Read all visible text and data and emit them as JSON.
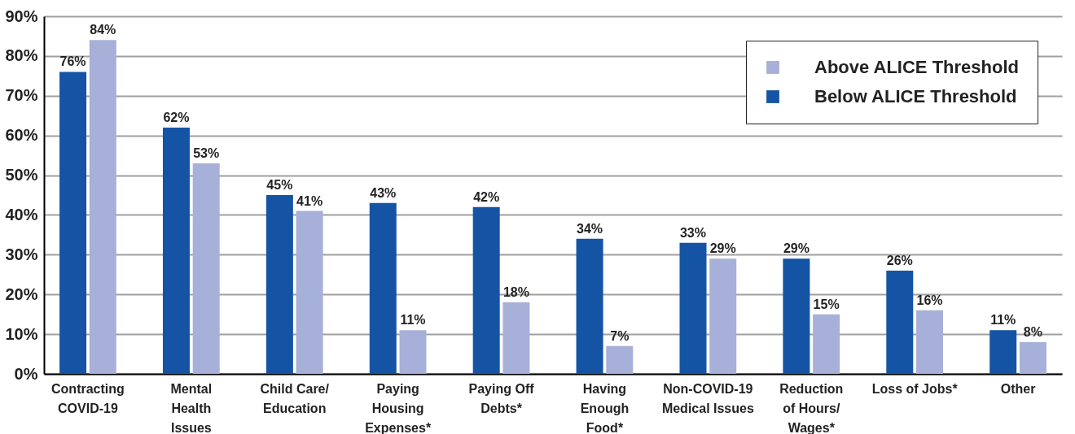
{
  "chart_data": {
    "type": "bar",
    "categories": [
      "Contracting\nCOVID-19",
      "Mental\nHealth\nIssues",
      "Child Care/\nEducation",
      "Paying\nHousing\nExpenses*",
      "Paying Off\nDebts*",
      "Having\nEnough\nFood*",
      "Non-COVID-19\nMedical Issues",
      "Reduction\nof Hours/\nWages*",
      "Loss of Jobs*",
      "Other"
    ],
    "series": [
      {
        "name": "Below ALICE Threshold",
        "color": "#1554a5",
        "values": [
          76,
          62,
          45,
          43,
          42,
          34,
          33,
          29,
          26,
          11
        ],
        "value_labels": [
          "76%",
          "62%",
          "45%",
          "43%",
          "42%",
          "34%",
          "33%",
          "29%",
          "26%",
          "11%"
        ]
      },
      {
        "name": "Above ALICE Threshold",
        "color": "#a7b0d8",
        "values": [
          84,
          53,
          41,
          11,
          18,
          7,
          29,
          15,
          16,
          8
        ],
        "value_labels": [
          "84%",
          "53%",
          "41%",
          "11%",
          "18%",
          "7%",
          "29%",
          "15%",
          "16%",
          "8%"
        ]
      }
    ],
    "ylim": [
      0,
      90
    ],
    "yticks": [
      {
        "value": 0,
        "label": "0%"
      },
      {
        "value": 10,
        "label": "10%"
      },
      {
        "value": 20,
        "label": "20%"
      },
      {
        "value": 30,
        "label": "30%"
      },
      {
        "value": 40,
        "label": "40%"
      },
      {
        "value": 50,
        "label": "50%"
      },
      {
        "value": 60,
        "label": "60%"
      },
      {
        "value": 70,
        "label": "70%"
      },
      {
        "value": 80,
        "label": "80%"
      },
      {
        "value": 90,
        "label": "90%"
      }
    ],
    "grid": "y",
    "legend": "top right"
  }
}
